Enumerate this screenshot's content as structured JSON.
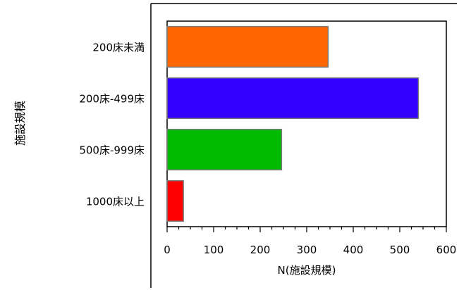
{
  "chart_data": {
    "type": "bar",
    "orientation": "horizontal",
    "categories": [
      "200床未満",
      "200床-499床",
      "500床-999床",
      "1000床以上"
    ],
    "values": [
      346,
      540,
      246,
      35
    ],
    "xlabel": "N(施設規模)",
    "ylabel": "施設規模",
    "xlim": [
      0,
      600
    ],
    "xticks": [
      "0",
      "100",
      "200",
      "300",
      "400",
      "500",
      "600"
    ],
    "grid": false,
    "colors": [
      "#ff6600",
      "#3300ff",
      "#00bb00",
      "#ff0000"
    ]
  }
}
